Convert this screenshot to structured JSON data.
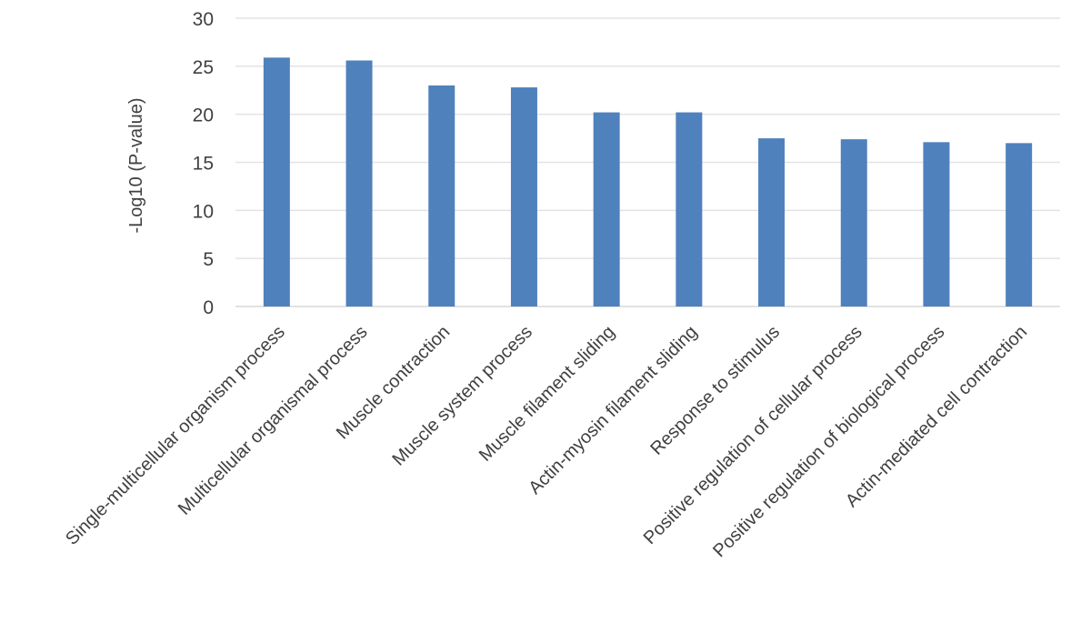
{
  "chart_data": {
    "type": "bar",
    "title": "",
    "xlabel": "",
    "ylabel": "-Log10 (P-value)",
    "ylim": [
      0,
      30
    ],
    "yticks": [
      0,
      5,
      10,
      15,
      20,
      25,
      30
    ],
    "grid": true,
    "legend": "none",
    "bar_color": "#4f81bd",
    "categories": [
      "Single-multicellular organism process",
      "Multicellular organismal process",
      "Muscle contraction",
      "Muscle system process",
      "Muscle filament sliding",
      "Actin-myosin filament sliding",
      "Response to stimulus",
      "Positive regulation of cellular process",
      "Positive regulation of biological process",
      "Actin-mediated cell contraction"
    ],
    "values": [
      25.9,
      25.6,
      23.0,
      22.8,
      20.2,
      20.2,
      17.5,
      17.4,
      17.1,
      17.0
    ]
  }
}
